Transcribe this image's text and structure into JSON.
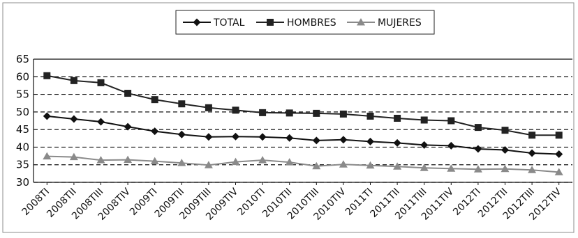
{
  "chart_data": {
    "type": "line",
    "title": "",
    "xlabel": "",
    "ylabel": "",
    "ylim": [
      30,
      65
    ],
    "y_ticks": [
      30,
      35,
      40,
      45,
      50,
      55,
      60,
      65
    ],
    "grid": "horizontal-dashed",
    "legend_position": "top-center",
    "categories": [
      "2008TI",
      "2008TII",
      "2008TIII",
      "2008TIV",
      "2009TI",
      "2009TII",
      "2009TIII",
      "2009TIV",
      "2010TI",
      "2010TII",
      "2010TIII",
      "2010TIV",
      "2011TI",
      "2011TII",
      "2011TIII",
      "2011TIV",
      "2012TI",
      "2012TII",
      "2012TIII",
      "2012TIV"
    ],
    "series": [
      {
        "name": "TOTAL",
        "marker": "diamond",
        "color": "#111111",
        "values": [
          48.8,
          48.0,
          47.2,
          45.8,
          44.5,
          43.6,
          42.9,
          43.0,
          42.9,
          42.6,
          41.9,
          42.1,
          41.6,
          41.2,
          40.6,
          40.4,
          39.5,
          39.2,
          38.3,
          38.0
        ]
      },
      {
        "name": "HOMBRES",
        "marker": "square",
        "color": "#222222",
        "values": [
          60.3,
          58.9,
          58.3,
          55.3,
          53.5,
          52.3,
          51.2,
          50.5,
          49.8,
          49.7,
          49.6,
          49.4,
          48.8,
          48.2,
          47.7,
          47.5,
          45.6,
          44.8,
          43.4,
          43.4
        ]
      },
      {
        "name": "MUJERES",
        "marker": "triangle",
        "color": "#8a8a8a",
        "values": [
          37.4,
          37.2,
          36.3,
          36.4,
          36.0,
          35.5,
          34.9,
          35.8,
          36.3,
          35.7,
          34.6,
          35.1,
          34.8,
          34.5,
          34.1,
          33.9,
          33.7,
          33.8,
          33.5,
          32.9
        ]
      }
    ]
  }
}
